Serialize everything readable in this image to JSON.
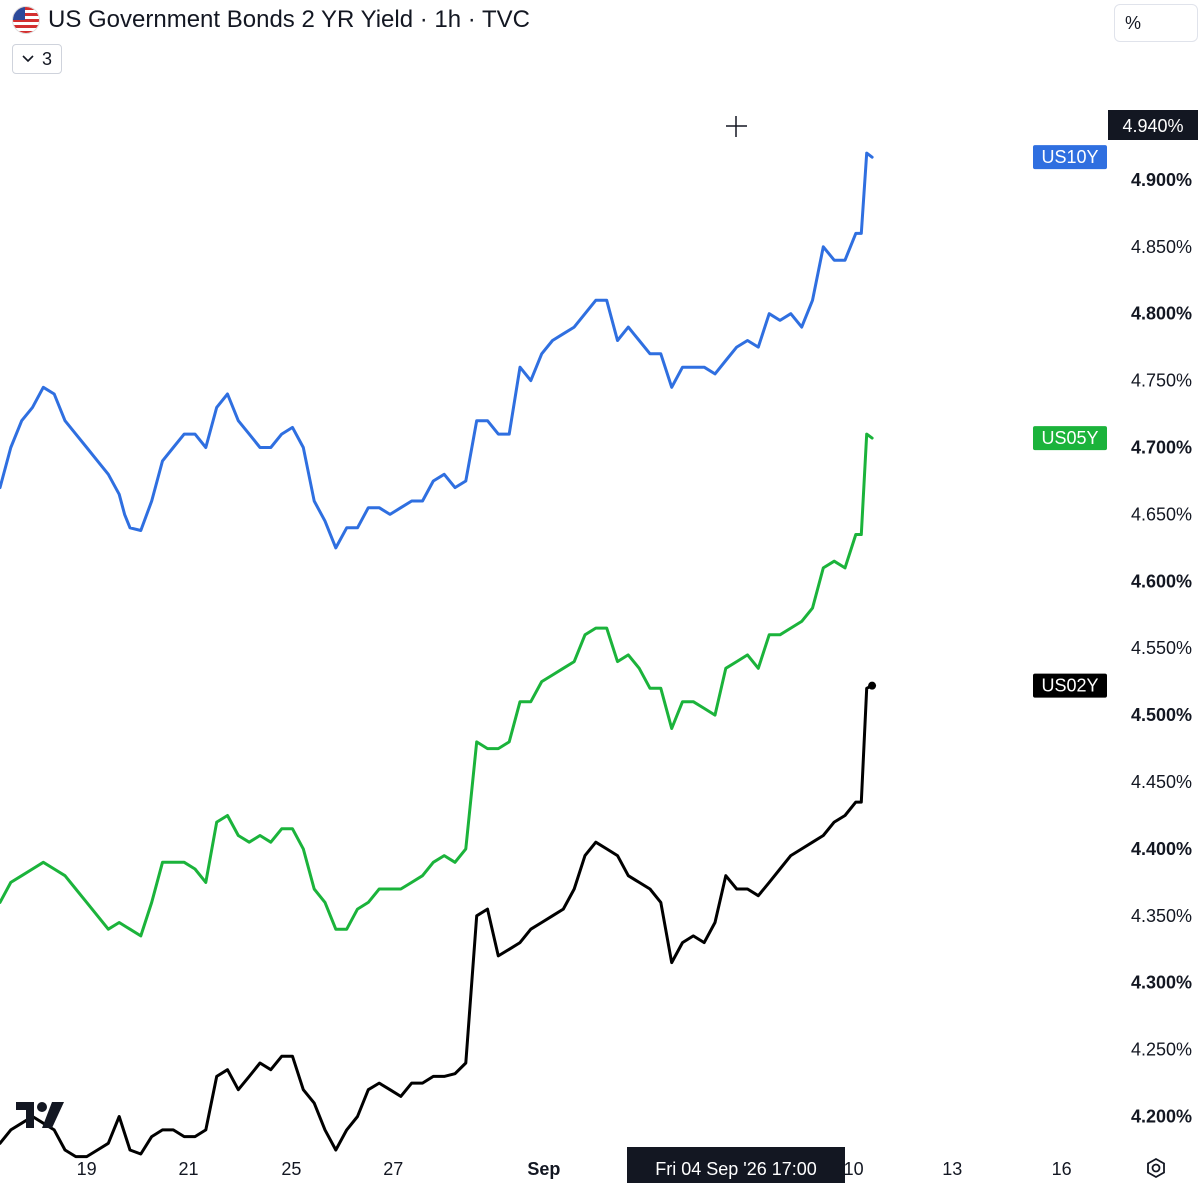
{
  "header": {
    "title": "US Government Bonds 2 YR Yield · 1h · TVC",
    "indicator_count": "3",
    "scale_mode": "%"
  },
  "crosshair": {
    "price_label": "4.940%",
    "time_label": "Fri 04 Sep '26   17:00"
  },
  "icons": {
    "flag": "us-flag-icon",
    "dropdown": "chevron-down-icon",
    "logo": "tradingview-logo",
    "settings": "gear-icon",
    "cursor": "crosshair-icon"
  },
  "chart_data": {
    "type": "line",
    "y_axis_position": "right",
    "y_unit": "%",
    "ylim": [
      4.17,
      4.965
    ],
    "y_ticks": [
      {
        "value": 4.2,
        "label": "4.200%",
        "bold": true
      },
      {
        "value": 4.25,
        "label": "4.250%",
        "bold": false
      },
      {
        "value": 4.3,
        "label": "4.300%",
        "bold": true
      },
      {
        "value": 4.35,
        "label": "4.350%",
        "bold": false
      },
      {
        "value": 4.4,
        "label": "4.400%",
        "bold": true
      },
      {
        "value": 4.45,
        "label": "4.450%",
        "bold": false
      },
      {
        "value": 4.5,
        "label": "4.500%",
        "bold": true
      },
      {
        "value": 4.55,
        "label": "4.550%",
        "bold": false
      },
      {
        "value": 4.6,
        "label": "4.600%",
        "bold": true
      },
      {
        "value": 4.65,
        "label": "4.650%",
        "bold": false
      },
      {
        "value": 4.7,
        "label": "4.700%",
        "bold": true
      },
      {
        "value": 4.75,
        "label": "4.750%",
        "bold": false
      },
      {
        "value": 4.8,
        "label": "4.800%",
        "bold": true
      },
      {
        "value": 4.85,
        "label": "4.850%",
        "bold": false
      },
      {
        "value": 4.9,
        "label": "4.900%",
        "bold": true
      }
    ],
    "x_ticks": [
      {
        "t": 0.8,
        "label": "19",
        "bold": false
      },
      {
        "t": 1.74,
        "label": "21",
        "bold": false
      },
      {
        "t": 2.69,
        "label": "25",
        "bold": false
      },
      {
        "t": 3.63,
        "label": "27",
        "bold": false
      },
      {
        "t": 5.02,
        "label": "Sep",
        "bold": true
      },
      {
        "t": 7.88,
        "label": "10",
        "bold": false
      },
      {
        "t": 8.79,
        "label": "13",
        "bold": false
      },
      {
        "t": 9.8,
        "label": "16",
        "bold": false
      }
    ],
    "crosshair_t": 6.81,
    "series": [
      {
        "name": "US10Y",
        "color": "#2f6fe0",
        "points": [
          [
            0,
            4.67
          ],
          [
            0.1,
            4.7
          ],
          [
            0.2,
            4.72
          ],
          [
            0.3,
            4.73
          ],
          [
            0.4,
            4.745
          ],
          [
            0.5,
            4.74
          ],
          [
            0.6,
            4.72
          ],
          [
            0.7,
            4.71
          ],
          [
            0.8,
            4.7
          ],
          [
            0.9,
            4.69
          ],
          [
            1.0,
            4.68
          ],
          [
            1.1,
            4.665
          ],
          [
            1.15,
            4.65
          ],
          [
            1.2,
            4.64
          ],
          [
            1.3,
            4.638
          ],
          [
            1.4,
            4.66
          ],
          [
            1.5,
            4.69
          ],
          [
            1.6,
            4.7
          ],
          [
            1.7,
            4.71
          ],
          [
            1.8,
            4.71
          ],
          [
            1.9,
            4.7
          ],
          [
            2.0,
            4.73
          ],
          [
            2.1,
            4.74
          ],
          [
            2.2,
            4.72
          ],
          [
            2.3,
            4.71
          ],
          [
            2.4,
            4.7
          ],
          [
            2.5,
            4.7
          ],
          [
            2.6,
            4.71
          ],
          [
            2.7,
            4.715
          ],
          [
            2.8,
            4.7
          ],
          [
            2.9,
            4.66
          ],
          [
            3.0,
            4.645
          ],
          [
            3.1,
            4.625
          ],
          [
            3.2,
            4.64
          ],
          [
            3.3,
            4.64
          ],
          [
            3.4,
            4.655
          ],
          [
            3.5,
            4.655
          ],
          [
            3.6,
            4.65
          ],
          [
            3.7,
            4.655
          ],
          [
            3.8,
            4.66
          ],
          [
            3.9,
            4.66
          ],
          [
            4.0,
            4.675
          ],
          [
            4.1,
            4.68
          ],
          [
            4.2,
            4.67
          ],
          [
            4.3,
            4.675
          ],
          [
            4.4,
            4.72
          ],
          [
            4.5,
            4.72
          ],
          [
            4.6,
            4.71
          ],
          [
            4.7,
            4.71
          ],
          [
            4.8,
            4.76
          ],
          [
            4.9,
            4.75
          ],
          [
            5.0,
            4.77
          ],
          [
            5.1,
            4.78
          ],
          [
            5.2,
            4.785
          ],
          [
            5.3,
            4.79
          ],
          [
            5.4,
            4.8
          ],
          [
            5.5,
            4.81
          ],
          [
            5.6,
            4.81
          ],
          [
            5.7,
            4.78
          ],
          [
            5.8,
            4.79
          ],
          [
            5.9,
            4.78
          ],
          [
            6.0,
            4.77
          ],
          [
            6.1,
            4.77
          ],
          [
            6.2,
            4.745
          ],
          [
            6.3,
            4.76
          ],
          [
            6.4,
            4.76
          ],
          [
            6.5,
            4.76
          ],
          [
            6.6,
            4.755
          ],
          [
            6.7,
            4.765
          ],
          [
            6.8,
            4.775
          ],
          [
            6.9,
            4.78
          ],
          [
            7.0,
            4.775
          ],
          [
            7.1,
            4.8
          ],
          [
            7.2,
            4.795
          ],
          [
            7.3,
            4.8
          ],
          [
            7.4,
            4.79
          ],
          [
            7.5,
            4.81
          ],
          [
            7.6,
            4.85
          ],
          [
            7.7,
            4.84
          ],
          [
            7.8,
            4.84
          ],
          [
            7.9,
            4.86
          ],
          [
            7.95,
            4.86
          ],
          [
            8.0,
            4.92
          ],
          [
            8.05,
            4.917
          ]
        ]
      },
      {
        "name": "US05Y",
        "color": "#1bb33b",
        "points": [
          [
            0,
            4.36
          ],
          [
            0.1,
            4.375
          ],
          [
            0.2,
            4.38
          ],
          [
            0.3,
            4.385
          ],
          [
            0.4,
            4.39
          ],
          [
            0.5,
            4.385
          ],
          [
            0.6,
            4.38
          ],
          [
            0.7,
            4.37
          ],
          [
            0.8,
            4.36
          ],
          [
            0.9,
            4.35
          ],
          [
            1.0,
            4.34
          ],
          [
            1.1,
            4.345
          ],
          [
            1.2,
            4.34
          ],
          [
            1.3,
            4.335
          ],
          [
            1.4,
            4.36
          ],
          [
            1.5,
            4.39
          ],
          [
            1.6,
            4.39
          ],
          [
            1.7,
            4.39
          ],
          [
            1.8,
            4.385
          ],
          [
            1.9,
            4.375
          ],
          [
            2.0,
            4.42
          ],
          [
            2.1,
            4.425
          ],
          [
            2.2,
            4.41
          ],
          [
            2.3,
            4.405
          ],
          [
            2.4,
            4.41
          ],
          [
            2.5,
            4.405
          ],
          [
            2.6,
            4.415
          ],
          [
            2.7,
            4.415
          ],
          [
            2.8,
            4.4
          ],
          [
            2.9,
            4.37
          ],
          [
            3.0,
            4.36
          ],
          [
            3.1,
            4.34
          ],
          [
            3.2,
            4.34
          ],
          [
            3.3,
            4.355
          ],
          [
            3.4,
            4.36
          ],
          [
            3.5,
            4.37
          ],
          [
            3.6,
            4.37
          ],
          [
            3.7,
            4.37
          ],
          [
            3.8,
            4.375
          ],
          [
            3.9,
            4.38
          ],
          [
            4.0,
            4.39
          ],
          [
            4.1,
            4.395
          ],
          [
            4.2,
            4.39
          ],
          [
            4.3,
            4.4
          ],
          [
            4.4,
            4.48
          ],
          [
            4.5,
            4.475
          ],
          [
            4.6,
            4.475
          ],
          [
            4.7,
            4.48
          ],
          [
            4.8,
            4.51
          ],
          [
            4.9,
            4.51
          ],
          [
            5.0,
            4.525
          ],
          [
            5.1,
            4.53
          ],
          [
            5.2,
            4.535
          ],
          [
            5.3,
            4.54
          ],
          [
            5.4,
            4.56
          ],
          [
            5.5,
            4.565
          ],
          [
            5.6,
            4.565
          ],
          [
            5.7,
            4.54
          ],
          [
            5.8,
            4.545
          ],
          [
            5.9,
            4.535
          ],
          [
            6.0,
            4.52
          ],
          [
            6.1,
            4.52
          ],
          [
            6.2,
            4.49
          ],
          [
            6.3,
            4.51
          ],
          [
            6.4,
            4.51
          ],
          [
            6.5,
            4.505
          ],
          [
            6.6,
            4.5
          ],
          [
            6.7,
            4.535
          ],
          [
            6.8,
            4.54
          ],
          [
            6.9,
            4.545
          ],
          [
            7.0,
            4.535
          ],
          [
            7.1,
            4.56
          ],
          [
            7.2,
            4.56
          ],
          [
            7.3,
            4.565
          ],
          [
            7.4,
            4.57
          ],
          [
            7.5,
            4.58
          ],
          [
            7.6,
            4.61
          ],
          [
            7.7,
            4.615
          ],
          [
            7.8,
            4.61
          ],
          [
            7.9,
            4.635
          ],
          [
            7.95,
            4.635
          ],
          [
            8.0,
            4.71
          ],
          [
            8.05,
            4.707
          ]
        ]
      },
      {
        "name": "US02Y",
        "color": "#000000",
        "points": [
          [
            0,
            4.18
          ],
          [
            0.1,
            4.19
          ],
          [
            0.2,
            4.195
          ],
          [
            0.3,
            4.2
          ],
          [
            0.4,
            4.195
          ],
          [
            0.5,
            4.19
          ],
          [
            0.6,
            4.175
          ],
          [
            0.7,
            4.17
          ],
          [
            0.8,
            4.17
          ],
          [
            0.9,
            4.175
          ],
          [
            1.0,
            4.18
          ],
          [
            1.1,
            4.2
          ],
          [
            1.2,
            4.175
          ],
          [
            1.3,
            4.172
          ],
          [
            1.4,
            4.185
          ],
          [
            1.5,
            4.19
          ],
          [
            1.6,
            4.19
          ],
          [
            1.7,
            4.185
          ],
          [
            1.8,
            4.185
          ],
          [
            1.9,
            4.19
          ],
          [
            2.0,
            4.23
          ],
          [
            2.1,
            4.235
          ],
          [
            2.2,
            4.22
          ],
          [
            2.3,
            4.23
          ],
          [
            2.4,
            4.24
          ],
          [
            2.5,
            4.235
          ],
          [
            2.6,
            4.245
          ],
          [
            2.7,
            4.245
          ],
          [
            2.8,
            4.22
          ],
          [
            2.9,
            4.21
          ],
          [
            3.0,
            4.19
          ],
          [
            3.1,
            4.175
          ],
          [
            3.2,
            4.19
          ],
          [
            3.3,
            4.2
          ],
          [
            3.4,
            4.22
          ],
          [
            3.5,
            4.225
          ],
          [
            3.6,
            4.22
          ],
          [
            3.7,
            4.215
          ],
          [
            3.8,
            4.225
          ],
          [
            3.9,
            4.225
          ],
          [
            4.0,
            4.23
          ],
          [
            4.1,
            4.23
          ],
          [
            4.2,
            4.232
          ],
          [
            4.3,
            4.24
          ],
          [
            4.4,
            4.35
          ],
          [
            4.5,
            4.355
          ],
          [
            4.6,
            4.32
          ],
          [
            4.7,
            4.325
          ],
          [
            4.8,
            4.33
          ],
          [
            4.9,
            4.34
          ],
          [
            5.0,
            4.345
          ],
          [
            5.1,
            4.35
          ],
          [
            5.2,
            4.355
          ],
          [
            5.3,
            4.37
          ],
          [
            5.4,
            4.395
          ],
          [
            5.5,
            4.405
          ],
          [
            5.6,
            4.4
          ],
          [
            5.7,
            4.395
          ],
          [
            5.8,
            4.38
          ],
          [
            5.9,
            4.375
          ],
          [
            6.0,
            4.37
          ],
          [
            6.1,
            4.36
          ],
          [
            6.2,
            4.315
          ],
          [
            6.3,
            4.33
          ],
          [
            6.4,
            4.335
          ],
          [
            6.5,
            4.33
          ],
          [
            6.6,
            4.345
          ],
          [
            6.7,
            4.38
          ],
          [
            6.8,
            4.37
          ],
          [
            6.9,
            4.37
          ],
          [
            7.0,
            4.365
          ],
          [
            7.1,
            4.375
          ],
          [
            7.2,
            4.385
          ],
          [
            7.3,
            4.395
          ],
          [
            7.4,
            4.4
          ],
          [
            7.5,
            4.405
          ],
          [
            7.6,
            4.41
          ],
          [
            7.7,
            4.42
          ],
          [
            7.8,
            4.425
          ],
          [
            7.9,
            4.435
          ],
          [
            7.95,
            4.435
          ],
          [
            8.0,
            4.52
          ],
          [
            8.05,
            4.522
          ]
        ]
      }
    ]
  }
}
